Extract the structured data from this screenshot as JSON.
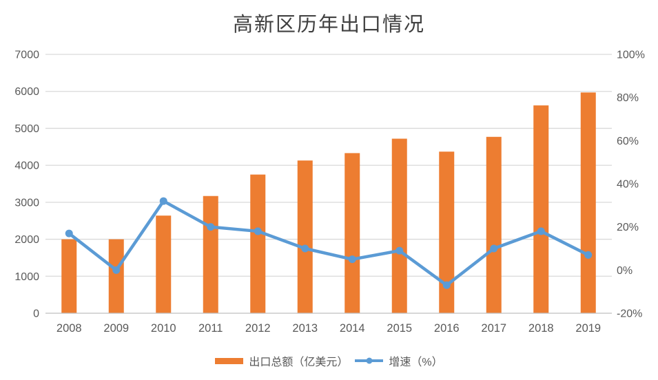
{
  "title": "高新区历年出口情况",
  "legend": [
    {
      "label": "出口总额（亿美元）",
      "series_type": "bar",
      "color": "#ED7D31"
    },
    {
      "label": "增速（%）",
      "series_type": "line",
      "color": "#5B9BD5"
    }
  ],
  "colors": {
    "background": "#FFFFFF",
    "bar": "#ED7D31",
    "line": "#5B9BD5",
    "gridline": "#D9D9D9",
    "axis_line": "#BFBFBF",
    "tick_text": "#595959",
    "title_text": "#404040"
  },
  "chart_data": {
    "type": "combo",
    "title": "高新区历年出口情况",
    "categories": [
      "2008",
      "2009",
      "2010",
      "2011",
      "2012",
      "2013",
      "2014",
      "2015",
      "2016",
      "2017",
      "2018",
      "2019"
    ],
    "series": [
      {
        "name": "出口总额（亿美元）",
        "type": "bar",
        "y_axis": "left",
        "color": "#ED7D31",
        "values": [
          2000,
          2000,
          2640,
          3170,
          3750,
          4130,
          4330,
          4720,
          4370,
          4770,
          5620,
          5970
        ]
      },
      {
        "name": "增速（%）",
        "type": "line",
        "y_axis": "right",
        "color": "#5B9BD5",
        "values": [
          17,
          0,
          32,
          20,
          18,
          10,
          5,
          9,
          -7,
          10,
          18,
          7
        ]
      }
    ],
    "left_axis": {
      "min": 0,
      "max": 7000,
      "step": 1000,
      "tick_labels": [
        "0",
        "1000",
        "2000",
        "3000",
        "4000",
        "5000",
        "6000",
        "7000"
      ]
    },
    "right_axis": {
      "min": -20,
      "max": 100,
      "step": 20,
      "tick_labels": [
        "-20%",
        "0%",
        "20%",
        "40%",
        "60%",
        "80%",
        "100%"
      ]
    },
    "grid": true,
    "legend_position": "bottom"
  }
}
